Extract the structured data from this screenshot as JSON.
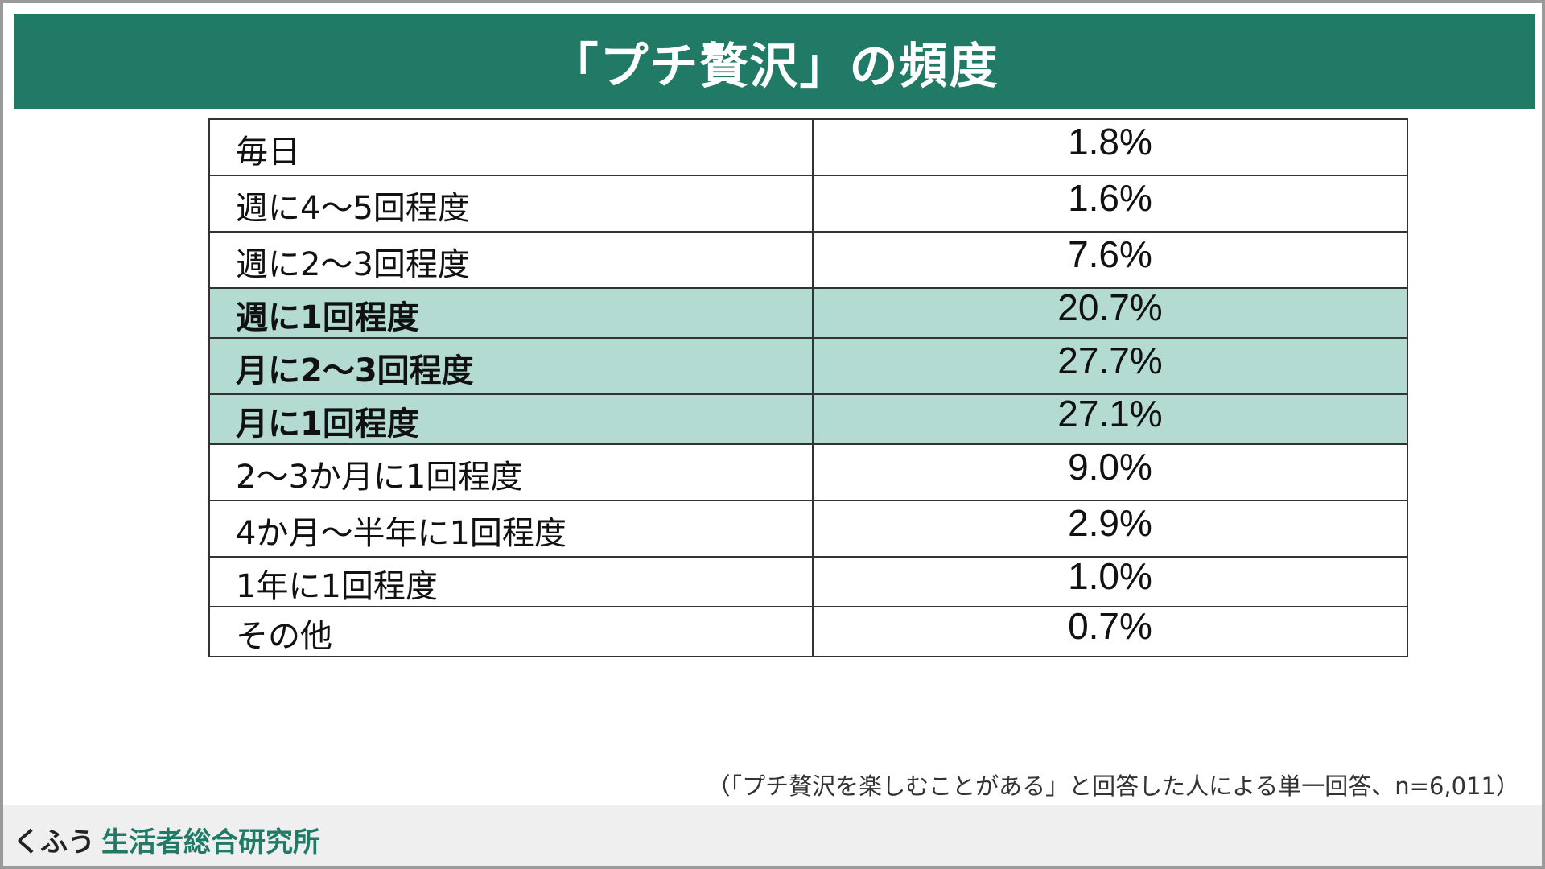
{
  "title": "「プチ贅沢」の頻度",
  "colors": {
    "title_bg": "#217a66",
    "highlight_row": "#b3dbd2",
    "brand_accent": "#217a66"
  },
  "table": {
    "rows": [
      {
        "label": "毎日",
        "value": "1.8%",
        "highlight": false
      },
      {
        "label": "週に4～5回程度",
        "value": "1.6%",
        "highlight": false
      },
      {
        "label": "週に2～3回程度",
        "value": "7.6%",
        "highlight": false
      },
      {
        "label": "週に1回程度",
        "value": "20.7%",
        "highlight": true
      },
      {
        "label": "月に2～3回程度",
        "value": "27.7%",
        "highlight": true
      },
      {
        "label": "月に1回程度",
        "value": "27.1%",
        "highlight": true
      },
      {
        "label": "2～3か月に1回程度",
        "value": "9.0%",
        "highlight": false
      },
      {
        "label": "4か月～半年に1回程度",
        "value": "2.9%",
        "highlight": false
      },
      {
        "label": "1年に1回程度",
        "value": "1.0%",
        "highlight": false
      },
      {
        "label": "その他",
        "value": "0.7%",
        "highlight": false
      }
    ]
  },
  "footnote": "（「プチ贅沢を楽しむことがある」と回答した人による単一回答、n=6,011）",
  "footer": {
    "brand_part1": "くふう",
    "brand_part2": "生活者総合研究所"
  }
}
